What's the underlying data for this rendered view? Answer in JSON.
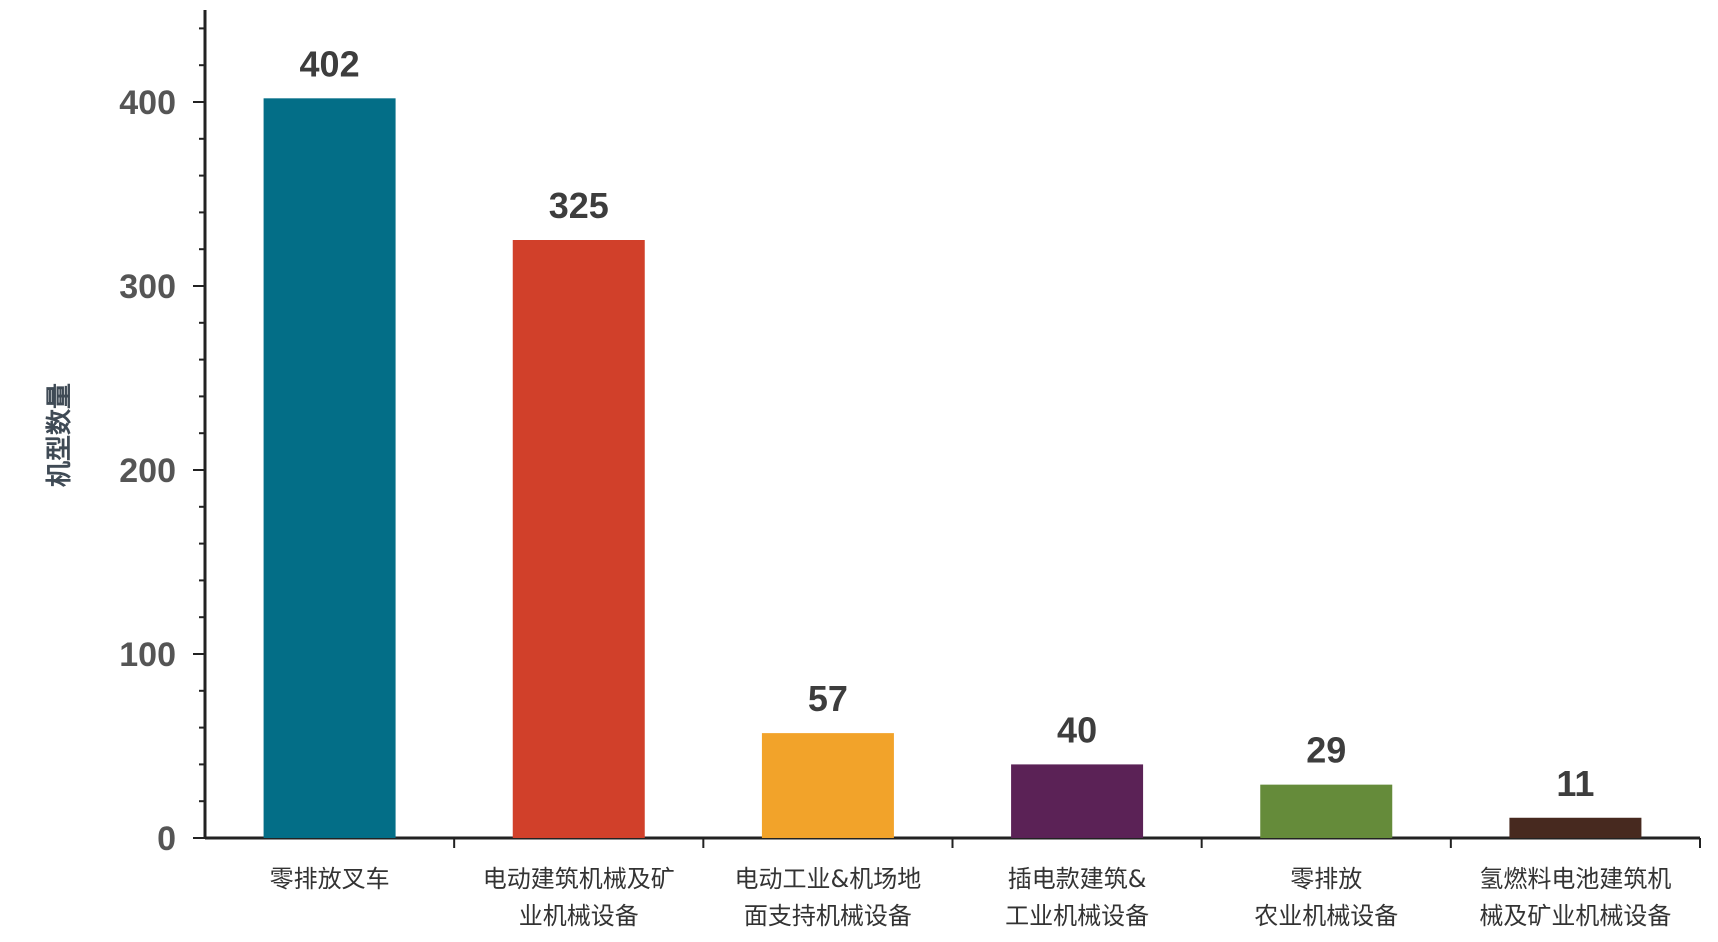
{
  "chart_data": {
    "type": "bar",
    "title": "",
    "xlabel": "",
    "ylabel": "机型数量",
    "ylim": [
      0,
      400
    ],
    "yticks": [
      0,
      100,
      200,
      300,
      400
    ],
    "grid": false,
    "categories": [
      [
        "零排放叉车"
      ],
      [
        "电动建筑机械及矿",
        "业机械设备"
      ],
      [
        "电动工业&机场地",
        "面支持机械设备"
      ],
      [
        "插电款建筑&",
        "工业机械设备"
      ],
      [
        "零排放",
        "农业机械设备"
      ],
      [
        "氢燃料电池建筑机",
        "械及矿业机械设备"
      ]
    ],
    "values": [
      402,
      325,
      57,
      40,
      29,
      11
    ],
    "colors": [
      "#036e87",
      "#d1402a",
      "#f2a32a",
      "#5b2256",
      "#658b3a",
      "#47291f"
    ]
  }
}
